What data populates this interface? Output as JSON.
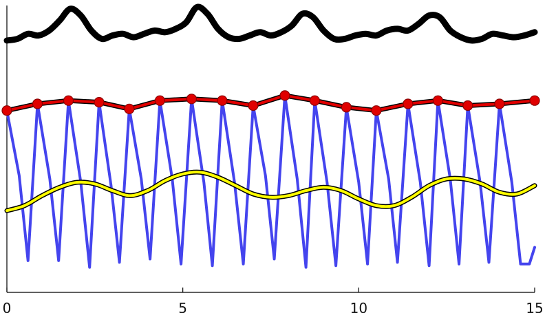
{
  "chart_data": {
    "type": "line",
    "title": "",
    "xlabel": "",
    "ylabel": "",
    "xlim": [
      0,
      15
    ],
    "ylim": [
      -0.3,
      8.3
    ],
    "grid": false,
    "legend": "none",
    "x_ticks": [
      0,
      5,
      10,
      15
    ],
    "x_tick_labels": [
      "0",
      "5",
      "10",
      "15"
    ],
    "y_axis_ticks_visible": false,
    "series": [
      {
        "color": "#000000",
        "style": "thick-line",
        "x": [
          0,
          0.3,
          0.6,
          0.9,
          1.2,
          1.5,
          1.8,
          2.1,
          2.4,
          2.7,
          3.0,
          3.3,
          3.6,
          3.9,
          4.2,
          4.5,
          4.8,
          5.1,
          5.4,
          5.7,
          6.0,
          6.3,
          6.6,
          6.9,
          7.2,
          7.5,
          7.8,
          8.1,
          8.4,
          8.7,
          9.0,
          9.3,
          9.6,
          9.9,
          10.2,
          10.5,
          10.8,
          11.1,
          11.4,
          11.7,
          12.0,
          12.3,
          12.6,
          12.9,
          13.2,
          13.5,
          13.8,
          14.1,
          14.4,
          14.7,
          15.0
        ],
        "values": [
          7.25,
          7.3,
          7.45,
          7.4,
          7.55,
          7.85,
          8.2,
          8.0,
          7.55,
          7.3,
          7.4,
          7.45,
          7.35,
          7.45,
          7.55,
          7.5,
          7.6,
          7.8,
          8.25,
          8.05,
          7.6,
          7.35,
          7.3,
          7.4,
          7.5,
          7.4,
          7.5,
          7.7,
          8.05,
          7.95,
          7.55,
          7.3,
          7.3,
          7.4,
          7.45,
          7.4,
          7.55,
          7.6,
          7.55,
          7.75,
          8.0,
          7.95,
          7.55,
          7.35,
          7.25,
          7.3,
          7.45,
          7.4,
          7.35,
          7.4,
          7.5
        ]
      },
      {
        "color": "#e00000",
        "style": "line-with-markers",
        "x": [
          0.0,
          0.87,
          1.75,
          2.62,
          3.48,
          4.35,
          5.25,
          6.12,
          7.0,
          7.9,
          8.75,
          9.65,
          10.5,
          11.4,
          12.25,
          13.1,
          14.0,
          15.0
        ],
        "values": [
          5.15,
          5.35,
          5.45,
          5.4,
          5.2,
          5.45,
          5.5,
          5.45,
          5.3,
          5.6,
          5.45,
          5.25,
          5.15,
          5.35,
          5.45,
          5.3,
          5.35,
          5.45
        ]
      },
      {
        "color": "#4444ee",
        "style": "line",
        "x": [
          0.0,
          0.35,
          0.6,
          0.87,
          1.22,
          1.47,
          1.75,
          2.1,
          2.35,
          2.62,
          2.96,
          3.2,
          3.48,
          3.82,
          4.07,
          4.35,
          4.7,
          4.95,
          5.25,
          5.6,
          5.84,
          6.12,
          6.47,
          6.72,
          7.0,
          7.35,
          7.6,
          7.9,
          8.25,
          8.5,
          8.75,
          9.1,
          9.35,
          9.65,
          10.0,
          10.25,
          10.5,
          10.85,
          11.1,
          11.4,
          11.75,
          12.0,
          12.25,
          12.6,
          12.85,
          13.1,
          13.45,
          13.7,
          14.0,
          14.35,
          14.6,
          14.85,
          15.0
        ],
        "values": [
          5.15,
          3.2,
          0.65,
          5.35,
          3.1,
          0.65,
          5.45,
          3.0,
          0.45,
          5.4,
          2.9,
          0.6,
          5.2,
          3.1,
          0.7,
          5.45,
          3.1,
          0.55,
          5.5,
          3.0,
          0.5,
          5.45,
          3.0,
          0.55,
          5.3,
          3.2,
          0.7,
          5.6,
          3.1,
          0.45,
          5.45,
          3.0,
          0.5,
          5.25,
          3.0,
          0.55,
          5.15,
          3.1,
          0.6,
          5.35,
          3.0,
          0.5,
          5.45,
          3.1,
          0.55,
          5.3,
          3.0,
          0.6,
          5.35,
          3.0,
          0.55,
          0.55,
          1.05
        ]
      },
      {
        "color": "#ffff00",
        "style": "outlined-line",
        "x": [
          0,
          0.5,
          1.0,
          1.5,
          2.0,
          2.5,
          3.0,
          3.5,
          4.0,
          4.5,
          5.0,
          5.5,
          6.0,
          6.5,
          7.0,
          7.5,
          8.0,
          8.5,
          9.0,
          9.5,
          10.0,
          10.5,
          11.0,
          11.5,
          12.0,
          12.5,
          13.0,
          13.5,
          14.0,
          14.5,
          15.0
        ],
        "values": [
          2.15,
          2.3,
          2.6,
          2.85,
          3.0,
          2.95,
          2.75,
          2.6,
          2.75,
          3.05,
          3.25,
          3.3,
          3.15,
          2.9,
          2.65,
          2.55,
          2.6,
          2.75,
          2.85,
          2.75,
          2.5,
          2.3,
          2.3,
          2.55,
          2.9,
          3.1,
          3.1,
          2.95,
          2.7,
          2.65,
          2.9
        ]
      }
    ]
  }
}
